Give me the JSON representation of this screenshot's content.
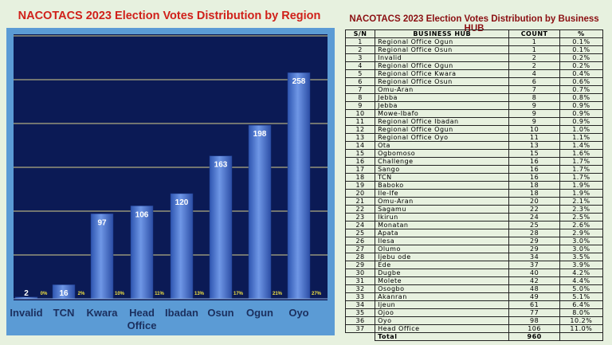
{
  "left_title": "NACOTACS 2023 Election Votes Distribution by Region",
  "right_title": "NACOTACS 2023 Election Votes Distribution by Business HUB",
  "colors": {
    "plot_bg": "#0b1a55",
    "panel_bg": "#5b9bd5",
    "bar": "#4a78d0",
    "pct_label": "#f0e040",
    "title_red": "#d0201a"
  },
  "chart_data": {
    "type": "bar",
    "title": "NACOTACS 2023 Election Votes Distribution by Region",
    "categories": [
      "Invalid",
      "TCN",
      "Kwara",
      "Head Office",
      "Ibadan",
      "Osun",
      "Ogun",
      "Oyo"
    ],
    "values": [
      2,
      16,
      97,
      106,
      120,
      163,
      198,
      258
    ],
    "percent_labels": [
      "0%",
      "2%",
      "10%",
      "11%",
      "13%",
      "17%",
      "21%",
      "27%"
    ],
    "ylim": [
      0,
      300
    ],
    "grid": true,
    "gridline_step": 50
  },
  "table": {
    "headers": [
      "S/N",
      "BUSINESS HUB",
      "COUNT",
      "%"
    ],
    "rows": [
      [
        "1",
        "Regional Office Ogun",
        "1",
        "0.1%"
      ],
      [
        "2",
        "Regional Office Osun",
        "1",
        "0.1%"
      ],
      [
        "3",
        "Invalid",
        "2",
        "0.2%"
      ],
      [
        "4",
        "Regional Office Ogun",
        "2",
        "0.2%"
      ],
      [
        "5",
        "Regional Office Kwara",
        "4",
        "0.4%"
      ],
      [
        "6",
        "Regional Office Osun",
        "6",
        "0.6%"
      ],
      [
        "7",
        "Omu-Aran",
        "7",
        "0.7%"
      ],
      [
        "8",
        "Jebba",
        "8",
        "0.8%"
      ],
      [
        "9",
        "Jebba",
        "9",
        "0.9%"
      ],
      [
        "10",
        "Mowe-Ibafo",
        "9",
        "0.9%"
      ],
      [
        "11",
        "Regional Office Ibadan",
        "9",
        "0.9%"
      ],
      [
        "12",
        "Regional Office Ogun",
        "10",
        "1.0%"
      ],
      [
        "13",
        "Regional Office Oyo",
        "11",
        "1.1%"
      ],
      [
        "14",
        "Ota",
        "13",
        "1.4%"
      ],
      [
        "15",
        "Ogbomoso",
        "15",
        "1.6%"
      ],
      [
        "16",
        "Challenge",
        "16",
        "1.7%"
      ],
      [
        "17",
        "Sango",
        "16",
        "1.7%"
      ],
      [
        "18",
        "TCN",
        "16",
        "1.7%"
      ],
      [
        "19",
        "Baboko",
        "18",
        "1.9%"
      ],
      [
        "20",
        "Ile-Ife",
        "18",
        "1.9%"
      ],
      [
        "21",
        "Omu-Aran",
        "20",
        "2.1%"
      ],
      [
        "22",
        "Sagamu",
        "22",
        "2.3%"
      ],
      [
        "23",
        "Ikirun",
        "24",
        "2.5%"
      ],
      [
        "24",
        "Monatan",
        "25",
        "2.6%"
      ],
      [
        "25",
        "Apata",
        "28",
        "2.9%"
      ],
      [
        "26",
        "Ilesa",
        "29",
        "3.0%"
      ],
      [
        "27",
        "Olumo",
        "29",
        "3.0%"
      ],
      [
        "28",
        "Ijebu ode",
        "34",
        "3.5%"
      ],
      [
        "29",
        "Ede",
        "37",
        "3.9%"
      ],
      [
        "30",
        "Dugbe",
        "40",
        "4.2%"
      ],
      [
        "31",
        "Molete",
        "42",
        "4.4%"
      ],
      [
        "32",
        "Osogbo",
        "48",
        "5.0%"
      ],
      [
        "33",
        "Akanran",
        "49",
        "5.1%"
      ],
      [
        "34",
        "Ijeun",
        "61",
        "6.4%"
      ],
      [
        "35",
        "Ojoo",
        "77",
        "8.0%"
      ],
      [
        "36",
        "Oyo",
        "98",
        "10.2%"
      ],
      [
        "37",
        "Head Office",
        "106",
        "11.0%"
      ]
    ],
    "total_label": "Total",
    "total_count": "960"
  }
}
